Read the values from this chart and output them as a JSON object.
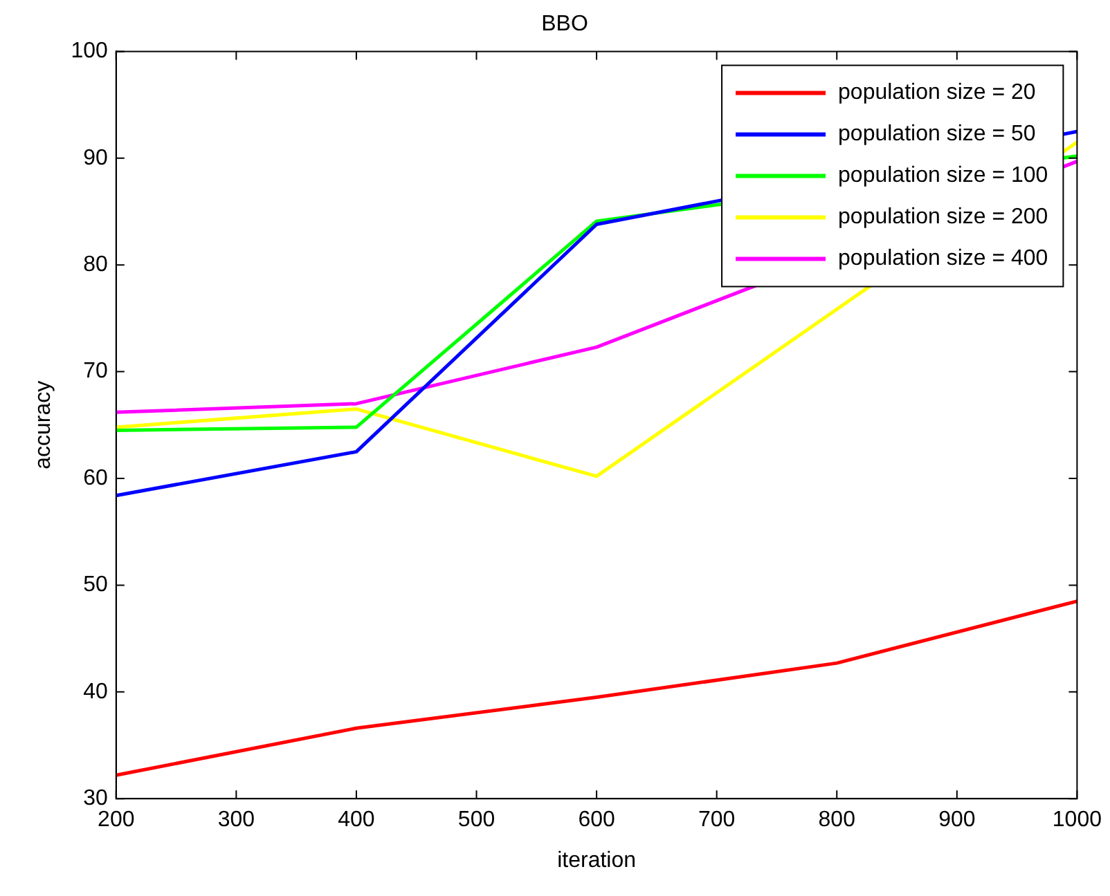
{
  "chart_data": {
    "type": "line",
    "title": "BBO",
    "xlabel": "iteration",
    "ylabel": "accuracy",
    "x": [
      200,
      400,
      600,
      800,
      1000
    ],
    "series": [
      {
        "name": "population size = 20",
        "color": "#ff0000",
        "values": [
          32.2,
          36.6,
          39.5,
          42.7,
          48.5
        ]
      },
      {
        "name": "population size = 50",
        "color": "#0000ff",
        "values": [
          58.4,
          62.5,
          83.8,
          null,
          92.5
        ]
      },
      {
        "name": "population size = 100",
        "color": "#00ff00",
        "values": [
          64.5,
          64.8,
          84.1,
          null,
          90.2
        ]
      },
      {
        "name": "population size = 200",
        "color": "#ffff00",
        "values": [
          64.8,
          66.5,
          60.2,
          null,
          91.5
        ]
      },
      {
        "name": "population size = 400",
        "color": "#ff00ff",
        "values": [
          66.2,
          67,
          72.3,
          null,
          89.7
        ]
      }
    ],
    "xlim": [
      200,
      1000
    ],
    "xticks": [
      200,
      300,
      400,
      500,
      600,
      700,
      800,
      900,
      1000
    ],
    "ylim": [
      30,
      100
    ],
    "yticks": [
      30,
      40,
      50,
      60,
      70,
      80,
      90,
      100
    ],
    "grid": false,
    "legend": "top right",
    "marker": "none",
    "line_style": "solid"
  }
}
